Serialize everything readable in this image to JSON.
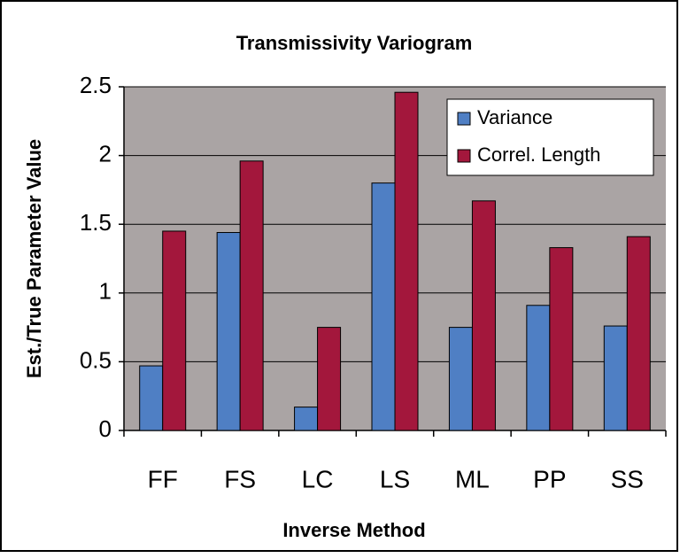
{
  "chart_data": {
    "type": "bar",
    "title": "Transmissivity Variogram",
    "x_label": "Inverse Method",
    "y_label": "Est./True Parameter Value",
    "categories": [
      "FF",
      "FS",
      "LC",
      "LS",
      "ML",
      "PP",
      "SS"
    ],
    "series": [
      {
        "name": "Variance",
        "color": "#4f7fc4",
        "values": [
          0.47,
          1.44,
          0.17,
          1.8,
          0.75,
          0.91,
          0.76
        ]
      },
      {
        "name": "Correl. Length",
        "color": "#a3173c",
        "values": [
          1.45,
          1.96,
          0.75,
          2.46,
          1.67,
          1.33,
          1.41
        ]
      }
    ],
    "ylim": [
      0,
      2.5
    ],
    "yticks": [
      0,
      0.5,
      1,
      1.5,
      2,
      2.5
    ],
    "grid": true,
    "legend": "upper right"
  }
}
